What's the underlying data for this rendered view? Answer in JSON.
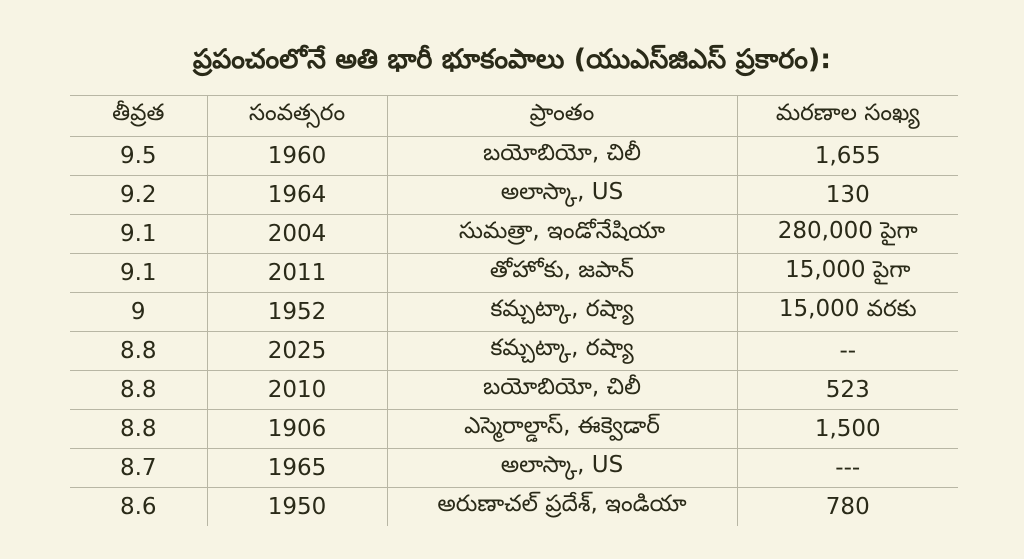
{
  "header": {
    "title": "ప్రపంచంలోనే అతి భారీ భూకంపాలు (యుఎస్‌జిఎస్ ప్రకారం):"
  },
  "table": {
    "columns": [
      "తీవ్రత",
      "సంవత్సరం",
      "ప్రాంతం",
      "మరణాల సంఖ్య"
    ],
    "rows": [
      [
        "9.5",
        "1960",
        "బయోబియో, చిలీ",
        "1,655"
      ],
      [
        "9.2",
        "1964",
        "అలాస్కా, US",
        "130"
      ],
      [
        "9.1",
        "2004",
        "సుమత్రా, ఇండోనేషియా",
        "280,000 పైగా"
      ],
      [
        "9.1",
        "2011",
        "తోహోకు, జపాన్",
        "15,000 పైగా"
      ],
      [
        "9",
        "1952",
        "కమ్చట్కా, రష్యా",
        "15,000 వరకు"
      ],
      [
        "8.8",
        "2025",
        "కమ్చట్కా, రష్యా",
        "--"
      ],
      [
        "8.8",
        "2010",
        "బయోబియో, చిలీ",
        "523"
      ],
      [
        "8.8",
        "1906",
        "ఎస్మెరాల్డాస్, ఈక్వెడార్",
        "1,500"
      ],
      [
        "8.7",
        "1965",
        "అలాస్కా, US",
        "---"
      ],
      [
        "8.6",
        "1950",
        "అరుణాచల్ ప్రదేశ్, ఇండియా",
        "780"
      ]
    ]
  }
}
